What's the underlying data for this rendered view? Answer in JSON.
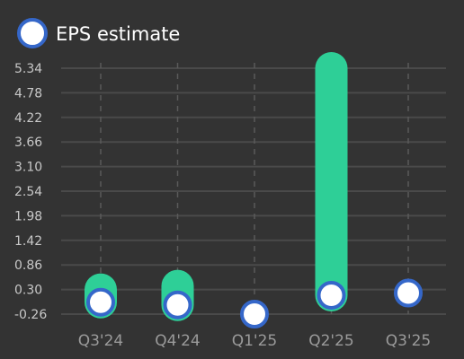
{
  "colors": {
    "background": "#333333",
    "bar": "#2ecf97",
    "marker_fill": "#ffffff",
    "marker_stroke": "#3567c9",
    "grid_horizontal": "#4a4a4a",
    "grid_vertical": "#5a5a5a"
  },
  "chart_data": {
    "type": "bar",
    "legend": {
      "label": "EPS estimate",
      "position": "top-left",
      "marker": "circle"
    },
    "categories": [
      "Q3'24",
      "Q4'24",
      "Q1'25",
      "Q2'25",
      "Q3'25"
    ],
    "y_ticks": [
      "5.34",
      "4.78",
      "4.22",
      "3.66",
      "3.10",
      "2.54",
      "1.98",
      "1.42",
      "0.86",
      "0.30",
      "-0.26"
    ],
    "ylim": [
      -0.26,
      5.34
    ],
    "grid": true,
    "series": [
      {
        "values": [
          0.3,
          0.38,
          null,
          5.34,
          null
        ]
      },
      {
        "name": "EPS estimate",
        "values": [
          0.01,
          -0.05,
          -0.26,
          0.17,
          0.22
        ]
      }
    ]
  }
}
